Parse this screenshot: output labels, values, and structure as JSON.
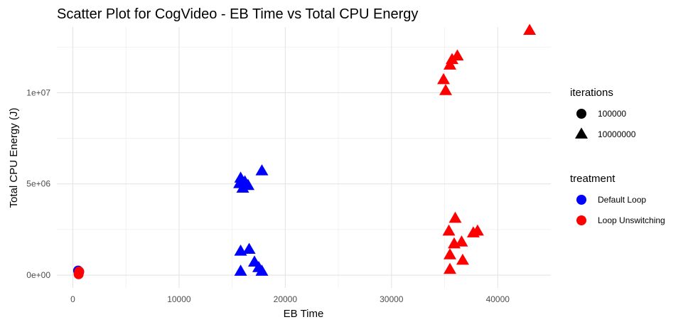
{
  "chart_data": {
    "type": "scatter",
    "title": "Scatter Plot for CogVideo  - EB Time vs Total CPU Energy",
    "xlabel": "EB Time",
    "ylabel": "Total CPU Energy (J)",
    "xlim": [
      -1500,
      45000
    ],
    "ylim": [
      -700000,
      13600000
    ],
    "x_ticks": [
      {
        "value": 0,
        "label": "0"
      },
      {
        "value": 10000,
        "label": "10000"
      },
      {
        "value": 20000,
        "label": "20000"
      },
      {
        "value": 30000,
        "label": "30000"
      },
      {
        "value": 40000,
        "label": "40000"
      }
    ],
    "y_ticks": [
      {
        "value": 0,
        "label": "0e+00"
      },
      {
        "value": 5000000,
        "label": "5e+06"
      },
      {
        "value": 10000000,
        "label": "1e+07"
      }
    ],
    "grid": true,
    "legend_position": "right",
    "legends": [
      {
        "title": "iterations",
        "entries": [
          {
            "label": "100000",
            "shape": "circle",
            "color": "#000000"
          },
          {
            "label": "10000000",
            "shape": "triangle",
            "color": "#000000"
          }
        ]
      },
      {
        "title": "treatment",
        "entries": [
          {
            "label": "Default Loop",
            "shape": "circle",
            "color": "#0000ff"
          },
          {
            "label": "Loop Unswitching",
            "shape": "circle",
            "color": "#ff0000"
          }
        ]
      }
    ],
    "series": [
      {
        "name": "Default Loop",
        "color": "#0000ff",
        "points": [
          {
            "x": 500,
            "y": 250000,
            "iterations": "100000"
          },
          {
            "x": 600,
            "y": 180000,
            "iterations": "100000"
          },
          {
            "x": 550,
            "y": 120000,
            "iterations": "100000"
          },
          {
            "x": 15800,
            "y": 5300000,
            "iterations": "10000000"
          },
          {
            "x": 15700,
            "y": 5000000,
            "iterations": "10000000"
          },
          {
            "x": 16000,
            "y": 4750000,
            "iterations": "10000000"
          },
          {
            "x": 16200,
            "y": 5100000,
            "iterations": "10000000"
          },
          {
            "x": 16500,
            "y": 4900000,
            "iterations": "10000000"
          },
          {
            "x": 17800,
            "y": 5700000,
            "iterations": "10000000"
          },
          {
            "x": 15800,
            "y": 1300000,
            "iterations": "10000000"
          },
          {
            "x": 16600,
            "y": 1400000,
            "iterations": "10000000"
          },
          {
            "x": 17100,
            "y": 700000,
            "iterations": "10000000"
          },
          {
            "x": 17500,
            "y": 400000,
            "iterations": "10000000"
          },
          {
            "x": 17800,
            "y": 200000,
            "iterations": "10000000"
          },
          {
            "x": 15800,
            "y": 200000,
            "iterations": "10000000"
          }
        ]
      },
      {
        "name": "Loop Unswitching",
        "color": "#ff0000",
        "points": [
          {
            "x": 600,
            "y": 200000,
            "iterations": "100000"
          },
          {
            "x": 550,
            "y": 50000,
            "iterations": "100000"
          },
          {
            "x": 43000,
            "y": 13400000,
            "iterations": "10000000"
          },
          {
            "x": 36200,
            "y": 12000000,
            "iterations": "10000000"
          },
          {
            "x": 35700,
            "y": 11800000,
            "iterations": "10000000"
          },
          {
            "x": 35500,
            "y": 11500000,
            "iterations": "10000000"
          },
          {
            "x": 34900,
            "y": 10700000,
            "iterations": "10000000"
          },
          {
            "x": 35100,
            "y": 10100000,
            "iterations": "10000000"
          },
          {
            "x": 36000,
            "y": 3100000,
            "iterations": "10000000"
          },
          {
            "x": 35400,
            "y": 2400000,
            "iterations": "10000000"
          },
          {
            "x": 37700,
            "y": 2300000,
            "iterations": "10000000"
          },
          {
            "x": 38100,
            "y": 2400000,
            "iterations": "10000000"
          },
          {
            "x": 36600,
            "y": 1800000,
            "iterations": "10000000"
          },
          {
            "x": 35900,
            "y": 1700000,
            "iterations": "10000000"
          },
          {
            "x": 35500,
            "y": 1100000,
            "iterations": "10000000"
          },
          {
            "x": 36700,
            "y": 800000,
            "iterations": "10000000"
          },
          {
            "x": 35500,
            "y": 300000,
            "iterations": "10000000"
          }
        ]
      }
    ]
  }
}
